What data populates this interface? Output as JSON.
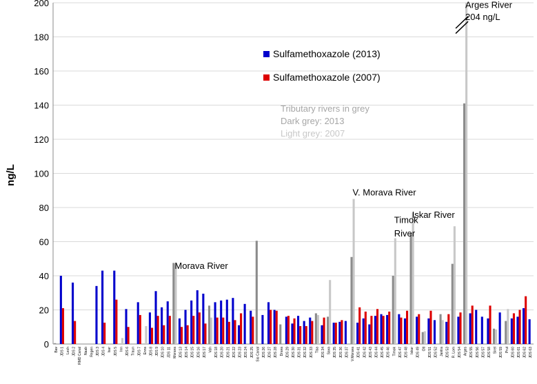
{
  "chart_data": {
    "type": "bar",
    "title": "",
    "xlabel": "",
    "ylabel": "ng/L",
    "ylim": [
      0,
      200
    ],
    "yticks": [
      0,
      20,
      40,
      60,
      80,
      100,
      120,
      140,
      160,
      180,
      200
    ],
    "grid": "horizontal",
    "legend_position": "upper-middle",
    "colors": {
      "s2013": "#0000cc",
      "s2007": "#dd0000",
      "tributary2013": "#8c8c8c",
      "tributary2007": "#c8c8c8",
      "grid": "#d9d9d9",
      "axis": "#888888",
      "text": "#000000",
      "note": "#a6a6a6"
    },
    "series": [
      {
        "name": "Sulfamethoxazole (2013)",
        "key": "s2013"
      },
      {
        "name": "Sulfamethoxazole (2007)",
        "key": "s2007"
      }
    ],
    "tributary_note": [
      "Tributary rivers in grey",
      "Dark grey: 2013",
      "Light grey: 2007"
    ],
    "categories": [
      {
        "label": "Bav",
        "trib": true,
        "v2013": 0.5,
        "v2007": null
      },
      {
        "label": "JDS 1",
        "v2013": 40,
        "v2007": 21
      },
      {
        "label": "Lech",
        "trib": true,
        "v2013": 0,
        "v2007": null
      },
      {
        "label": "JDS 2",
        "v2013": 36,
        "v2007": 13.5
      },
      {
        "label": "RMD Canal",
        "trib": true,
        "v2013": 0,
        "v2007": null
      },
      {
        "label": "Naab",
        "trib": true,
        "v2013": 0,
        "v2007": null
      },
      {
        "label": "Regen",
        "trib": true,
        "v2013": 0,
        "v2007": null
      },
      {
        "label": "JDS 3",
        "v2013": 34,
        "v2007": null
      },
      {
        "label": "JDS 4",
        "v2013": 43,
        "v2007": 12.5
      },
      {
        "label": "Isar",
        "trib": true,
        "v2013": 0,
        "v2007": null
      },
      {
        "label": "JDS 5",
        "v2013": 43,
        "v2007": 26
      },
      {
        "label": "Inn",
        "trib": true,
        "v2013": 0,
        "v2007": 3.5
      },
      {
        "label": "JDS 6",
        "v2013": 20.5,
        "v2007": 10
      },
      {
        "label": "Traun",
        "trib": true,
        "v2013": 0,
        "v2007": null
      },
      {
        "label": "JDS 7",
        "v2013": 24.5,
        "v2007": 17
      },
      {
        "label": "Enns",
        "trib": true,
        "v2013": 0,
        "v2007": 10.5
      },
      {
        "label": "JDS 8",
        "v2013": 18.5,
        "v2007": 9.5
      },
      {
        "label": "JDS 9",
        "v2013": 31,
        "v2007": 16.5
      },
      {
        "label": "JDS 10",
        "v2013": 21.5,
        "v2007": 11
      },
      {
        "label": "JDS 11",
        "v2013": 25,
        "v2007": 16.5
      },
      {
        "label": "Morava",
        "trib": true,
        "v2013": 47.5,
        "v2007": 47
      },
      {
        "label": "JDS 13",
        "v2013": 15,
        "v2007": 10
      },
      {
        "label": "JDS 14",
        "v2013": 20,
        "v2007": 11
      },
      {
        "label": "JDS 15",
        "v2013": 25.5,
        "v2007": 16.5
      },
      {
        "label": "JDS 16",
        "v2013": 31.5,
        "v2007": 18.5
      },
      {
        "label": "JDS 17",
        "v2013": 29.5,
        "v2007": 12
      },
      {
        "label": "Vah",
        "trib": true,
        "v2013": 22.5,
        "v2007": 15.5
      },
      {
        "label": "JDS 18",
        "v2013": 24.5,
        "v2007": 15.5
      },
      {
        "label": "JDS 20",
        "v2013": 25.5,
        "v2007": 15.5
      },
      {
        "label": "JDS 21",
        "v2013": 26,
        "v2007": 13
      },
      {
        "label": "JDS 22",
        "v2013": 27,
        "v2007": 14
      },
      {
        "label": "JDS 23",
        "v2013": 11,
        "v2007": 18
      },
      {
        "label": "JDS 24",
        "v2013": 23.5,
        "v2007": null
      },
      {
        "label": "JDS 25",
        "v2013": 19.5,
        "v2007": 16
      },
      {
        "label": "Sio Canal",
        "trib": true,
        "v2013": 60.5,
        "v2007": null
      },
      {
        "label": "JDS 26",
        "v2013": 17,
        "v2007": null
      },
      {
        "label": "JDS 27",
        "v2013": 24.5,
        "v2007": 20
      },
      {
        "label": "JDS 28",
        "v2013": 20,
        "v2007": 19.5
      },
      {
        "label": "Drava",
        "trib": true,
        "v2013": 11.5,
        "v2007": null
      },
      {
        "label": "JDS 29",
        "v2013": 16,
        "v2007": 16.5
      },
      {
        "label": "JDS 30",
        "v2013": 12,
        "v2007": 15
      },
      {
        "label": "JDS 31",
        "v2013": 16.5,
        "v2007": 10.5
      },
      {
        "label": "JDS 32",
        "v2013": 13.5,
        "v2007": 10.5
      },
      {
        "label": "JDS 33",
        "v2013": 15.5,
        "v2007": 13.5
      },
      {
        "label": "Tisa",
        "trib": true,
        "v2013": 18,
        "v2007": 17
      },
      {
        "label": "JDS 34",
        "v2013": 11,
        "v2007": 15.5
      },
      {
        "label": "Sava",
        "trib": true,
        "v2013": 16,
        "v2007": 37.5
      },
      {
        "label": "JDS 35",
        "v2013": 12.5,
        "v2007": 12.5
      },
      {
        "label": "JDS 36",
        "v2013": 13,
        "v2007": 14
      },
      {
        "label": "JDS 37",
        "v2013": 13.5,
        "v2007": null
      },
      {
        "label": "V.Morava",
        "trib": true,
        "v2013": 51,
        "v2007": 85
      },
      {
        "label": "JDS 41",
        "v2013": 12.5,
        "v2007": 21.5
      },
      {
        "label": "JDS 42",
        "v2013": 15,
        "v2007": 19
      },
      {
        "label": "JDS 43",
        "v2013": 11.5,
        "v2007": 16.5
      },
      {
        "label": "JDS 44",
        "v2013": 16.5,
        "v2007": 20.5
      },
      {
        "label": "JDS 45",
        "v2013": 17.5,
        "v2007": 16.5
      },
      {
        "label": "JDS 46",
        "v2013": 17,
        "v2007": 19
      },
      {
        "label": "Timok",
        "trib": true,
        "v2013": 40,
        "v2007": 62
      },
      {
        "label": "JDS 47",
        "v2013": 17.5,
        "v2007": 15.5
      },
      {
        "label": "JDS 48",
        "v2013": 15,
        "v2007": 19.5
      },
      {
        "label": "Iskar",
        "trib": true,
        "v2013": 65,
        "v2007": 77
      },
      {
        "label": "JDS 49",
        "v2013": 16,
        "v2007": 17.5
      },
      {
        "label": "Olt",
        "trib": true,
        "v2013": 7,
        "v2007": 7.5
      },
      {
        "label": "JDS 51",
        "v2013": 15,
        "v2007": 19.5
      },
      {
        "label": "JDS 52",
        "v2013": 14,
        "v2007": null
      },
      {
        "label": "Jantra",
        "trib": true,
        "v2013": 17.5,
        "v2007": 14
      },
      {
        "label": "JDS 53",
        "v2013": 13,
        "v2007": 17.5
      },
      {
        "label": "R. Lom",
        "trib": true,
        "v2013": 47,
        "v2007": 69
      },
      {
        "label": "JDS 54",
        "v2013": 16,
        "v2007": 18.5
      },
      {
        "label": "Arges",
        "trib": true,
        "v2013": 141,
        "v2007": 204
      },
      {
        "label": "JDS 55",
        "v2013": 18,
        "v2007": 22.5
      },
      {
        "label": "JDS 56",
        "v2013": 20,
        "v2007": null
      },
      {
        "label": "JDS 57",
        "v2013": 16,
        "v2007": null
      },
      {
        "label": "JDS 58",
        "v2013": 15,
        "v2007": 22.5
      },
      {
        "label": "Siret",
        "trib": true,
        "v2013": 9,
        "v2007": 8.5
      },
      {
        "label": "JDS 59",
        "v2013": 18.5,
        "v2007": null
      },
      {
        "label": "Prut",
        "trib": true,
        "v2013": 13.5,
        "v2007": 20.5
      },
      {
        "label": "JDS 60",
        "v2013": 15,
        "v2007": 18
      },
      {
        "label": "JDS 61",
        "v2013": 16,
        "v2007": 20
      },
      {
        "label": "JDS 62",
        "v2013": 21,
        "v2007": 28
      },
      {
        "label": "JDS 63",
        "v2013": 14.5,
        "v2007": null
      }
    ],
    "annotations": [
      {
        "text": "Morava River",
        "cat": 20,
        "y": 44
      },
      {
        "text": "V. Morava River",
        "cat": 50,
        "y": 87
      },
      {
        "text": "Timok",
        "cat": 57,
        "y": 71
      },
      {
        "text": "River",
        "cat": 57,
        "y": 63
      },
      {
        "text": "Iskar River",
        "cat": 60,
        "y": 74
      },
      {
        "text": "Arges River",
        "cat": 69,
        "y": 197
      },
      {
        "text": "204 ng/L",
        "cat": 69,
        "y": 190
      }
    ]
  }
}
